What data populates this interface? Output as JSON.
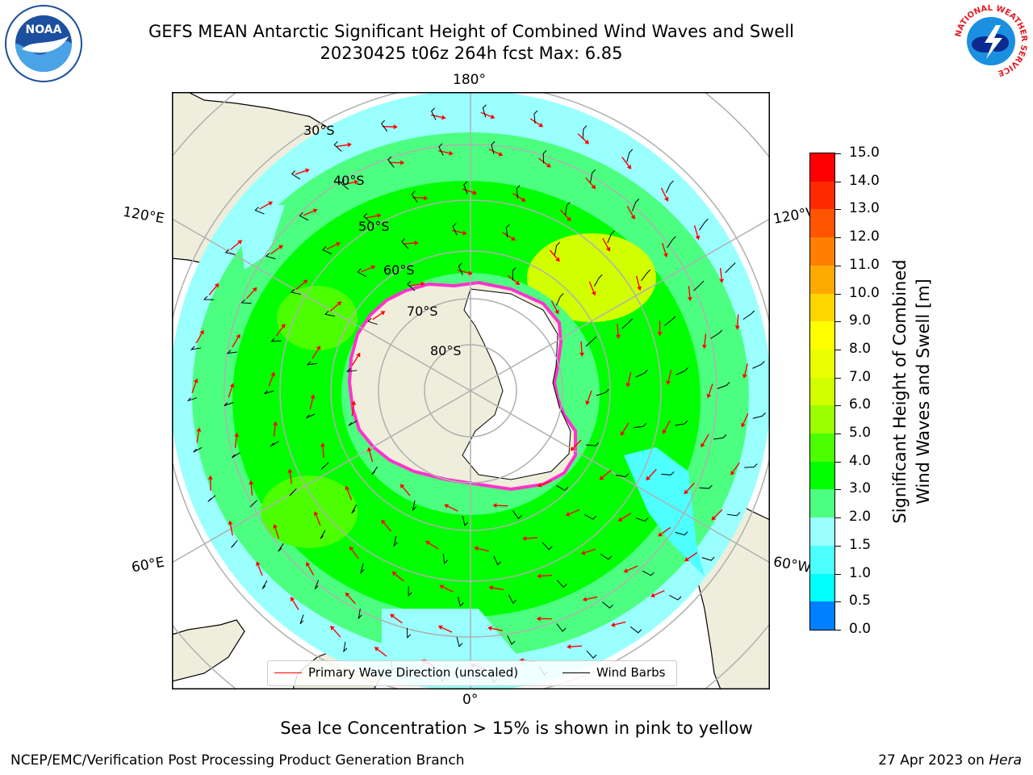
{
  "header": {
    "title": "GEFS MEAN Antarctic Significant Height of Combined Wind Waves and Swell",
    "subtitle": "20230425 t06z 264h fcst   Max: 6.85"
  },
  "map": {
    "projection": "south-polar-stereographic",
    "lon_labels": {
      "top": "180°",
      "bottom": "0°",
      "upper_left": "120°E",
      "lower_left": "60°E",
      "upper_right": "120°W",
      "lower_right": "60°W"
    },
    "lat_labels": [
      "30°S",
      "40°S",
      "50°S",
      "60°S",
      "70°S",
      "80°S"
    ],
    "legend": {
      "wave_label": "Primary Wave Direction (unscaled)",
      "wind_label": "Wind Barbs",
      "wave_color": "#ff0000",
      "wind_color": "#000000"
    },
    "colors": {
      "land": "#efeedc",
      "ocean_default": "#00ff00",
      "graticule": "#b0b0b0",
      "ice_edge": "#ff33cc"
    }
  },
  "colorbar": {
    "label_line1": "Significant Height of Combined",
    "label_line2": "Wind Waves and Swell [m]",
    "ticks": [
      "15.0",
      "14.0",
      "13.0",
      "12.0",
      "11.0",
      "10.0",
      "9.0",
      "8.0",
      "7.0",
      "6.0",
      "5.0",
      "4.0",
      "3.0",
      "2.0",
      "1.5",
      "1.0",
      "0.5",
      "0.0"
    ],
    "colors": [
      "#ff0000",
      "#ff2a00",
      "#ff5500",
      "#ff8000",
      "#ffaa00",
      "#ffd500",
      "#ffff00",
      "#ebff00",
      "#d2ff00",
      "#9aff00",
      "#4cff00",
      "#00ff00",
      "#4dff80",
      "#99ffff",
      "#4dffff",
      "#00ffff",
      "#0080ff",
      "#0000ff"
    ]
  },
  "footer": {
    "note": "Sea Ice Concentration > 15% is shown in pink to yellow",
    "credit": "NCEP/EMC/Verification Post Processing Product Generation Branch",
    "date_prefix": "27 Apr 2023 on ",
    "date_machine": "Hera"
  },
  "logos": {
    "left_text": "NOAA",
    "left_ring": "NATIONAL OCEANIC AND ATMOSPHERIC ADMINISTRATION · U.S. DEPARTMENT OF COMMERCE",
    "right_ring": "NATIONAL WEATHER SERVICE"
  }
}
